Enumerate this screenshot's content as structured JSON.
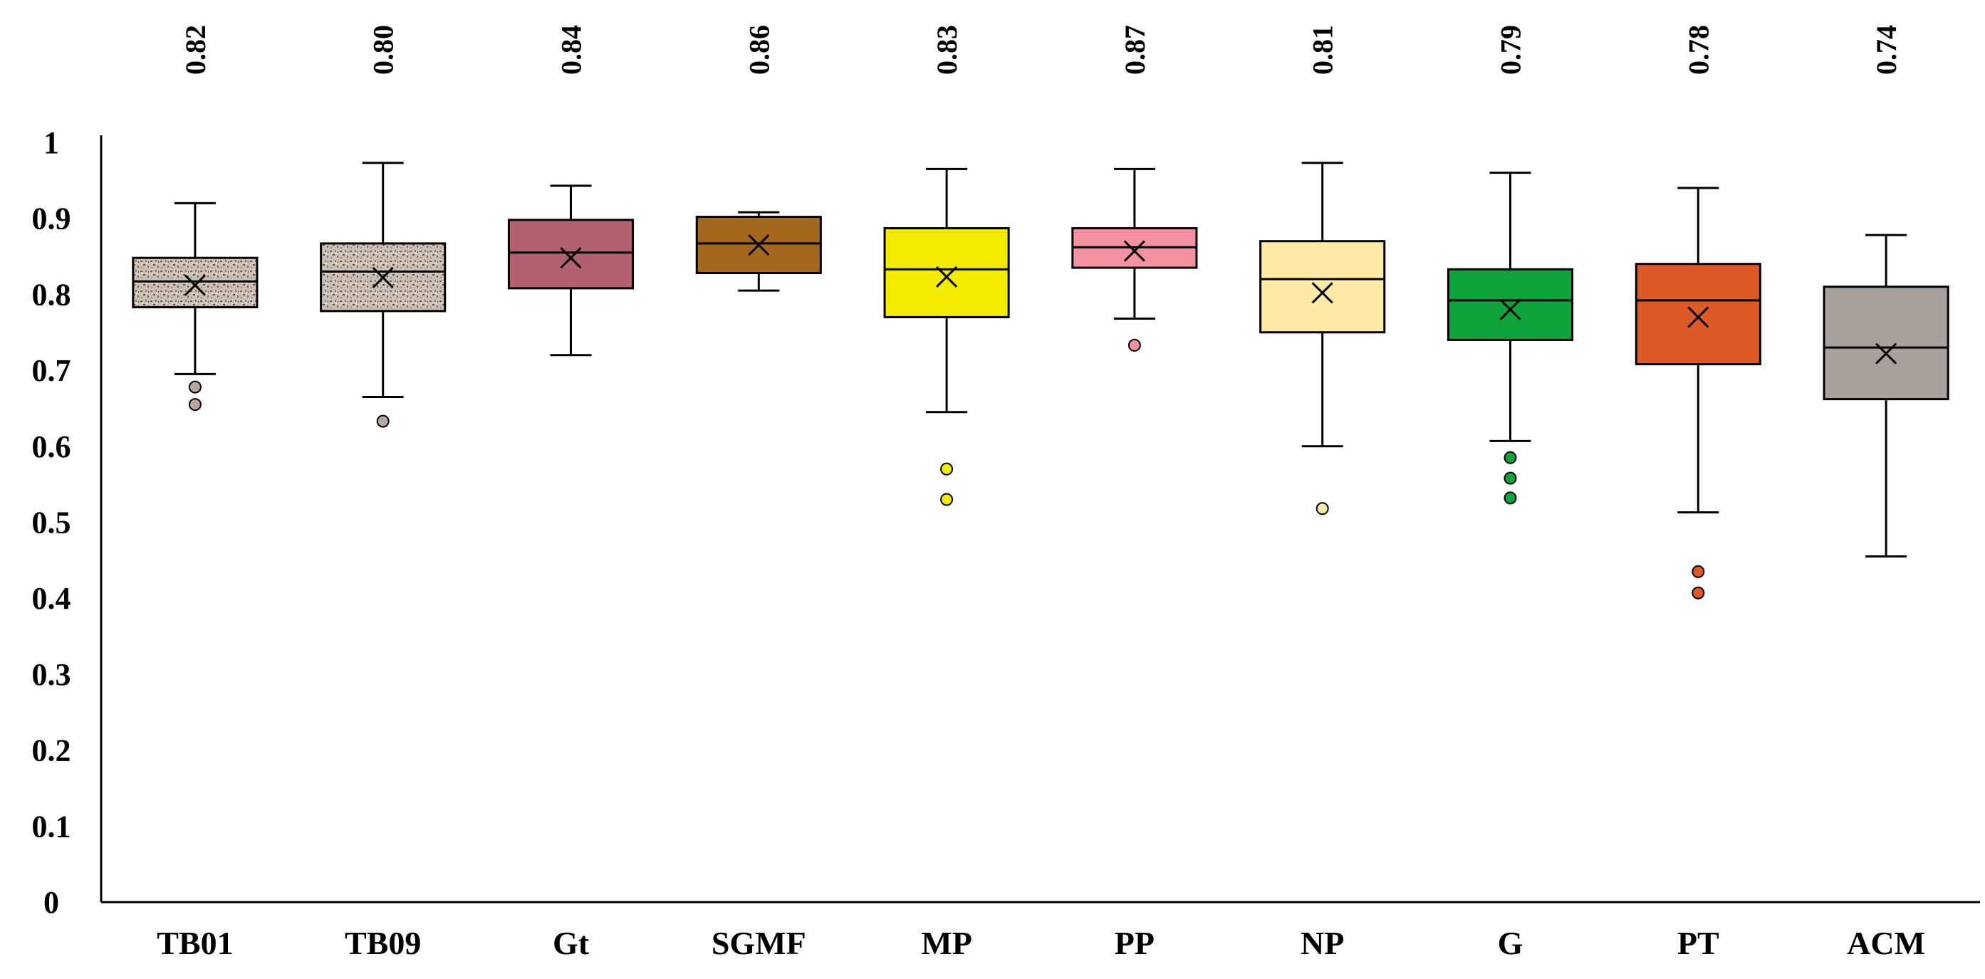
{
  "chart_data": {
    "type": "boxplot",
    "title": "",
    "xlabel": "",
    "ylabel": "",
    "ylim": [
      0,
      1
    ],
    "yticks": [
      "0",
      "0.1",
      "0.2",
      "0.3",
      "0.4",
      "0.5",
      "0.6",
      "0.7",
      "0.8",
      "0.9",
      "1"
    ],
    "grid": false,
    "categories": [
      "TB01",
      "TB09",
      "Gt",
      "SGMF",
      "MP",
      "PP",
      "NP",
      "G",
      "PT",
      "ACM"
    ],
    "top_labels": [
      "0.82",
      "0.80",
      "0.84",
      "0.86",
      "0.83",
      "0.87",
      "0.81",
      "0.79",
      "0.78",
      "0.74"
    ],
    "boxes": [
      {
        "name": "TB01",
        "whisker_low": 0.695,
        "q1": 0.783,
        "median": 0.817,
        "q3": 0.848,
        "whisker_high": 0.92,
        "mean": 0.812,
        "outliers": [
          0.678,
          0.655
        ],
        "fill": "#c9bcb3",
        "pattern": true
      },
      {
        "name": "TB09",
        "whisker_low": 0.665,
        "q1": 0.778,
        "median": 0.83,
        "q3": 0.867,
        "whisker_high": 0.973,
        "mean": 0.822,
        "outliers": [
          0.633
        ],
        "fill": "#c9bcb3",
        "pattern": true
      },
      {
        "name": "Gt",
        "whisker_low": 0.72,
        "q1": 0.808,
        "median": 0.855,
        "q3": 0.898,
        "whisker_high": 0.943,
        "mean": 0.848,
        "outliers": [],
        "fill": "#b1616f",
        "pattern": false
      },
      {
        "name": "SGMF",
        "whisker_low": 0.805,
        "q1": 0.828,
        "median": 0.867,
        "q3": 0.902,
        "whisker_high": 0.908,
        "mean": 0.865,
        "outliers": [],
        "fill": "#a3671e",
        "pattern": false
      },
      {
        "name": "MP",
        "whisker_low": 0.645,
        "q1": 0.77,
        "median": 0.833,
        "q3": 0.887,
        "whisker_high": 0.965,
        "mean": 0.823,
        "outliers": [
          0.57,
          0.53
        ],
        "fill": "#f4ec00",
        "pattern": false
      },
      {
        "name": "PP",
        "whisker_low": 0.768,
        "q1": 0.835,
        "median": 0.862,
        "q3": 0.887,
        "whisker_high": 0.965,
        "mean": 0.857,
        "outliers": [
          0.733
        ],
        "fill": "#f592a2",
        "pattern": false
      },
      {
        "name": "NP",
        "whisker_low": 0.6,
        "q1": 0.75,
        "median": 0.82,
        "q3": 0.87,
        "whisker_high": 0.973,
        "mean": 0.802,
        "outliers": [
          0.518
        ],
        "fill": "#fdeaa6",
        "pattern": false
      },
      {
        "name": "G",
        "whisker_low": 0.607,
        "q1": 0.74,
        "median": 0.792,
        "q3": 0.833,
        "whisker_high": 0.96,
        "mean": 0.78,
        "outliers": [
          0.585,
          0.558,
          0.532
        ],
        "fill": "#0fa33c",
        "pattern": false
      },
      {
        "name": "PT",
        "whisker_low": 0.513,
        "q1": 0.708,
        "median": 0.792,
        "q3": 0.84,
        "whisker_high": 0.94,
        "mean": 0.77,
        "outliers": [
          0.435,
          0.407
        ],
        "fill": "#dd5a26",
        "pattern": false
      },
      {
        "name": "ACM",
        "whisker_low": 0.455,
        "q1": 0.662,
        "median": 0.73,
        "q3": 0.81,
        "whisker_high": 0.878,
        "mean": 0.722,
        "outliers": [],
        "fill": "#a8a09d",
        "pattern": false
      }
    ]
  }
}
